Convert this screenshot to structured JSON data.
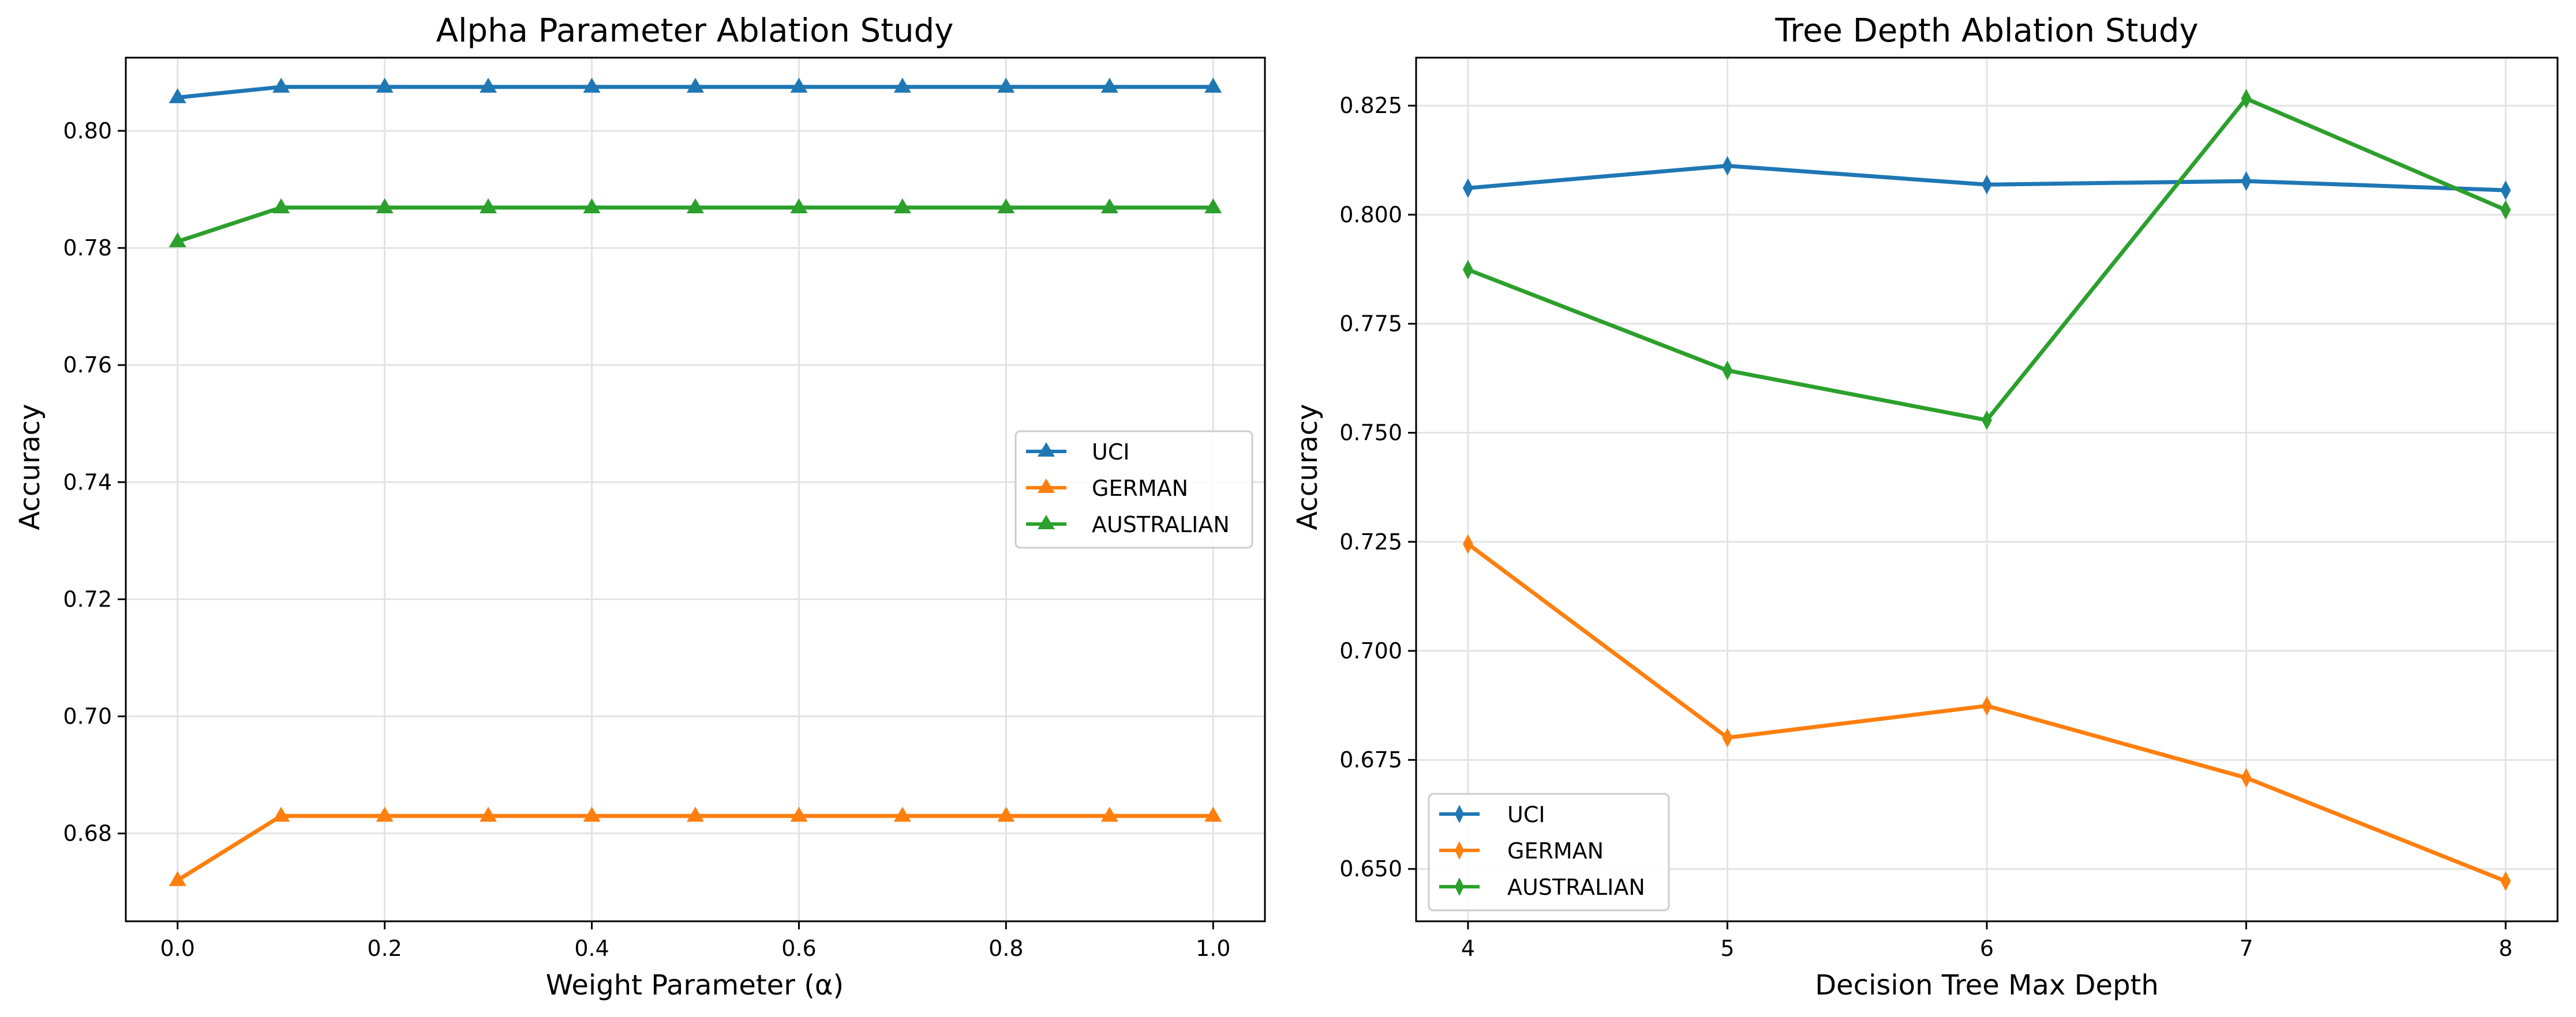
{
  "chart_data": [
    {
      "type": "line",
      "title": "Alpha Parameter Ablation Study",
      "xlabel": "Weight Parameter (α)",
      "ylabel": "Accuracy",
      "x": [
        0.0,
        0.1,
        0.2,
        0.3,
        0.4,
        0.5,
        0.6,
        0.7,
        0.8,
        0.9,
        1.0
      ],
      "xlim": [
        -0.05,
        1.05
      ],
      "ylim": [
        0.665,
        0.8125
      ],
      "xticks": [
        0.0,
        0.2,
        0.4,
        0.6,
        0.8,
        1.0
      ],
      "xtick_labels": [
        "0.0",
        "0.2",
        "0.4",
        "0.6",
        "0.8",
        "1.0"
      ],
      "yticks": [
        0.68,
        0.7,
        0.72,
        0.74,
        0.76,
        0.78,
        0.8
      ],
      "ytick_labels": [
        "0.68",
        "0.70",
        "0.72",
        "0.74",
        "0.76",
        "0.78",
        "0.80"
      ],
      "marker": "triangle",
      "grid": true,
      "legend_position": "center-right",
      "series": [
        {
          "name": "UCI",
          "color": "#1f77b4",
          "values": [
            0.8057,
            0.8075,
            0.8075,
            0.8075,
            0.8075,
            0.8075,
            0.8075,
            0.8075,
            0.8075,
            0.8075,
            0.8075
          ]
        },
        {
          "name": "GERMAN",
          "color": "#ff7f0e",
          "values": [
            0.672,
            0.683,
            0.683,
            0.683,
            0.683,
            0.683,
            0.683,
            0.683,
            0.683,
            0.683,
            0.683
          ]
        },
        {
          "name": "AUSTRALIAN",
          "color": "#2ca02c",
          "values": [
            0.7811,
            0.7869,
            0.7869,
            0.7869,
            0.7869,
            0.7869,
            0.7869,
            0.7869,
            0.7869,
            0.7869,
            0.7869
          ]
        }
      ]
    },
    {
      "type": "line",
      "title": "Tree Depth Ablation Study",
      "xlabel": "Decision Tree Max Depth",
      "ylabel": "Accuracy",
      "x": [
        4,
        5,
        6,
        7,
        8
      ],
      "xlim": [
        3.8,
        8.2
      ],
      "ylim": [
        0.638,
        0.836
      ],
      "xticks": [
        4,
        5,
        6,
        7,
        8
      ],
      "xtick_labels": [
        "4",
        "5",
        "6",
        "7",
        "8"
      ],
      "yticks": [
        0.65,
        0.675,
        0.7,
        0.725,
        0.75,
        0.775,
        0.8,
        0.825
      ],
      "ytick_labels": [
        "0.650",
        "0.675",
        "0.700",
        "0.725",
        "0.750",
        "0.775",
        "0.800",
        "0.825"
      ],
      "marker": "thin_diamond",
      "grid": true,
      "legend_position": "lower-left",
      "series": [
        {
          "name": "UCI",
          "color": "#1f77b4",
          "values": [
            0.8061,
            0.8112,
            0.8069,
            0.8077,
            0.8056
          ]
        },
        {
          "name": "GERMAN",
          "color": "#ff7f0e",
          "values": [
            0.7245,
            0.6801,
            0.6874,
            0.6709,
            0.6472
          ]
        },
        {
          "name": "AUSTRALIAN",
          "color": "#2ca02c",
          "values": [
            0.7874,
            0.7643,
            0.7529,
            0.8266,
            0.8011
          ]
        }
      ]
    }
  ]
}
